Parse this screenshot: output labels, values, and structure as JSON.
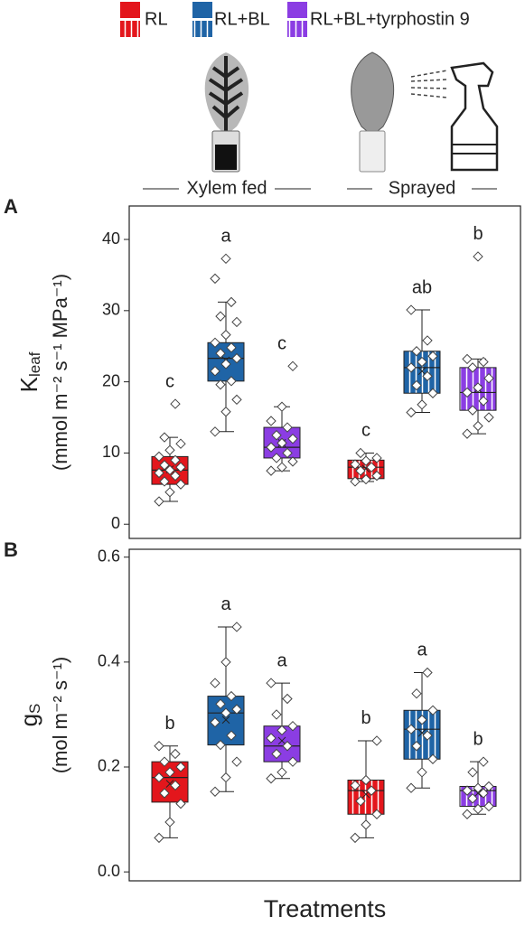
{
  "treatments": [
    {
      "name": "RL",
      "color": "#e3161c"
    },
    {
      "name": "RL+BL",
      "color": "#1f64a6"
    },
    {
      "name": "RL+BL+tyrphostin 9",
      "color": "#8b3de3"
    }
  ],
  "methods": [
    {
      "name": "Xylem fed",
      "pattern": "solid"
    },
    {
      "name": "Sprayed",
      "pattern": "striped"
    }
  ],
  "chart_data": [
    {
      "type": "box",
      "panel": "A",
      "ylabel": {
        "symbol": "K",
        "subscript": "leaf",
        "unit": "(mmol m⁻² s⁻¹ MPa⁻¹)"
      },
      "ylim": [
        -2,
        44.7
      ],
      "yticks": [
        0,
        10,
        20,
        30,
        40
      ],
      "boxes": [
        {
          "whisker_low": 3.2,
          "q1": 5.6,
          "median": 7.6,
          "q3": 9.5,
          "whisker_high": 12.2,
          "mean": 7.7,
          "letter": "c",
          "points": [
            3.2,
            4.5,
            5.6,
            6.0,
            6.8,
            7.2,
            7.6,
            8.0,
            8.3,
            9.0,
            9.5,
            10.4,
            11.3,
            12.2,
            16.9
          ]
        },
        {
          "whisker_low": 13.0,
          "q1": 20.1,
          "median": 23.3,
          "q3": 25.5,
          "whisker_high": 31.2,
          "mean": 23.0,
          "letter": "a",
          "points": [
            13.0,
            15.8,
            17.5,
            19.6,
            20.1,
            21.5,
            22.5,
            23.3,
            24.0,
            24.8,
            25.5,
            26.6,
            28.4,
            29.2,
            31.2,
            34.5,
            37.3
          ]
        },
        {
          "whisker_low": 7.5,
          "q1": 9.3,
          "median": 10.8,
          "q3": 13.6,
          "whisker_high": 16.5,
          "mean": 11.4,
          "letter": "c",
          "points": [
            7.5,
            8.0,
            8.8,
            9.3,
            10.0,
            10.8,
            11.4,
            12.0,
            12.5,
            13.6,
            14.5,
            16.5,
            22.2
          ]
        },
        {
          "whisker_low": 6.0,
          "q1": 6.4,
          "median": 8.0,
          "q3": 9.0,
          "whisker_high": 10.0,
          "mean": 7.8,
          "letter": "c",
          "points": [
            6.0,
            6.3,
            6.8,
            7.5,
            8.0,
            8.4,
            8.9,
            9.3,
            10.0
          ]
        },
        {
          "whisker_low": 15.7,
          "q1": 18.4,
          "median": 22.0,
          "q3": 24.3,
          "whisker_high": 30.1,
          "mean": 21.5,
          "letter": "ab",
          "points": [
            15.7,
            16.8,
            18.4,
            19.5,
            20.8,
            22.0,
            22.8,
            23.6,
            24.3,
            25.8,
            30.1
          ]
        },
        {
          "whisker_low": 12.7,
          "q1": 16.0,
          "median": 18.5,
          "q3": 22.0,
          "whisker_high": 23.2,
          "mean": 19.0,
          "letter": "b",
          "points": [
            12.7,
            13.8,
            15.0,
            16.0,
            17.3,
            18.5,
            19.2,
            20.5,
            22.0,
            22.8,
            23.2,
            37.6
          ]
        }
      ]
    },
    {
      "type": "box",
      "panel": "B",
      "ylabel": {
        "symbol": "g",
        "subscript": "S",
        "unit": "(mol m⁻² s⁻¹)"
      },
      "xlabel": "Treatments",
      "ylim": [
        -0.017,
        0.615
      ],
      "yticks": [
        {
          "value": 0,
          "label": "0.0"
        },
        0.2,
        0.4,
        0.6
      ],
      "boxes": [
        {
          "whisker_low": 0.065,
          "q1": 0.133,
          "median": 0.18,
          "q3": 0.21,
          "whisker_high": 0.24,
          "mean": 0.168,
          "letter": "b",
          "points": [
            0.065,
            0.095,
            0.13,
            0.15,
            0.165,
            0.18,
            0.19,
            0.2,
            0.21,
            0.225,
            0.24
          ]
        },
        {
          "whisker_low": 0.153,
          "q1": 0.242,
          "median": 0.303,
          "q3": 0.335,
          "whisker_high": 0.467,
          "mean": 0.29,
          "letter": "a",
          "points": [
            0.153,
            0.18,
            0.21,
            0.242,
            0.26,
            0.285,
            0.303,
            0.31,
            0.32,
            0.335,
            0.36,
            0.4,
            0.467
          ]
        },
        {
          "whisker_low": 0.178,
          "q1": 0.21,
          "median": 0.24,
          "q3": 0.278,
          "whisker_high": 0.36,
          "mean": 0.25,
          "letter": "a",
          "points": [
            0.178,
            0.19,
            0.21,
            0.225,
            0.24,
            0.255,
            0.27,
            0.278,
            0.3,
            0.33,
            0.36
          ]
        },
        {
          "whisker_low": 0.065,
          "q1": 0.11,
          "median": 0.155,
          "q3": 0.175,
          "whisker_high": 0.25,
          "mean": 0.148,
          "letter": "b",
          "points": [
            0.065,
            0.09,
            0.11,
            0.135,
            0.155,
            0.165,
            0.175,
            0.25
          ]
        },
        {
          "whisker_low": 0.16,
          "q1": 0.215,
          "median": 0.272,
          "q3": 0.308,
          "whisker_high": 0.38,
          "mean": 0.265,
          "letter": "a",
          "points": [
            0.16,
            0.19,
            0.215,
            0.24,
            0.26,
            0.272,
            0.29,
            0.308,
            0.34,
            0.38
          ]
        },
        {
          "whisker_low": 0.11,
          "q1": 0.125,
          "median": 0.155,
          "q3": 0.163,
          "whisker_high": 0.21,
          "mean": 0.15,
          "letter": "b",
          "points": [
            0.11,
            0.12,
            0.125,
            0.14,
            0.15,
            0.155,
            0.16,
            0.163,
            0.19,
            0.21
          ]
        }
      ]
    }
  ]
}
